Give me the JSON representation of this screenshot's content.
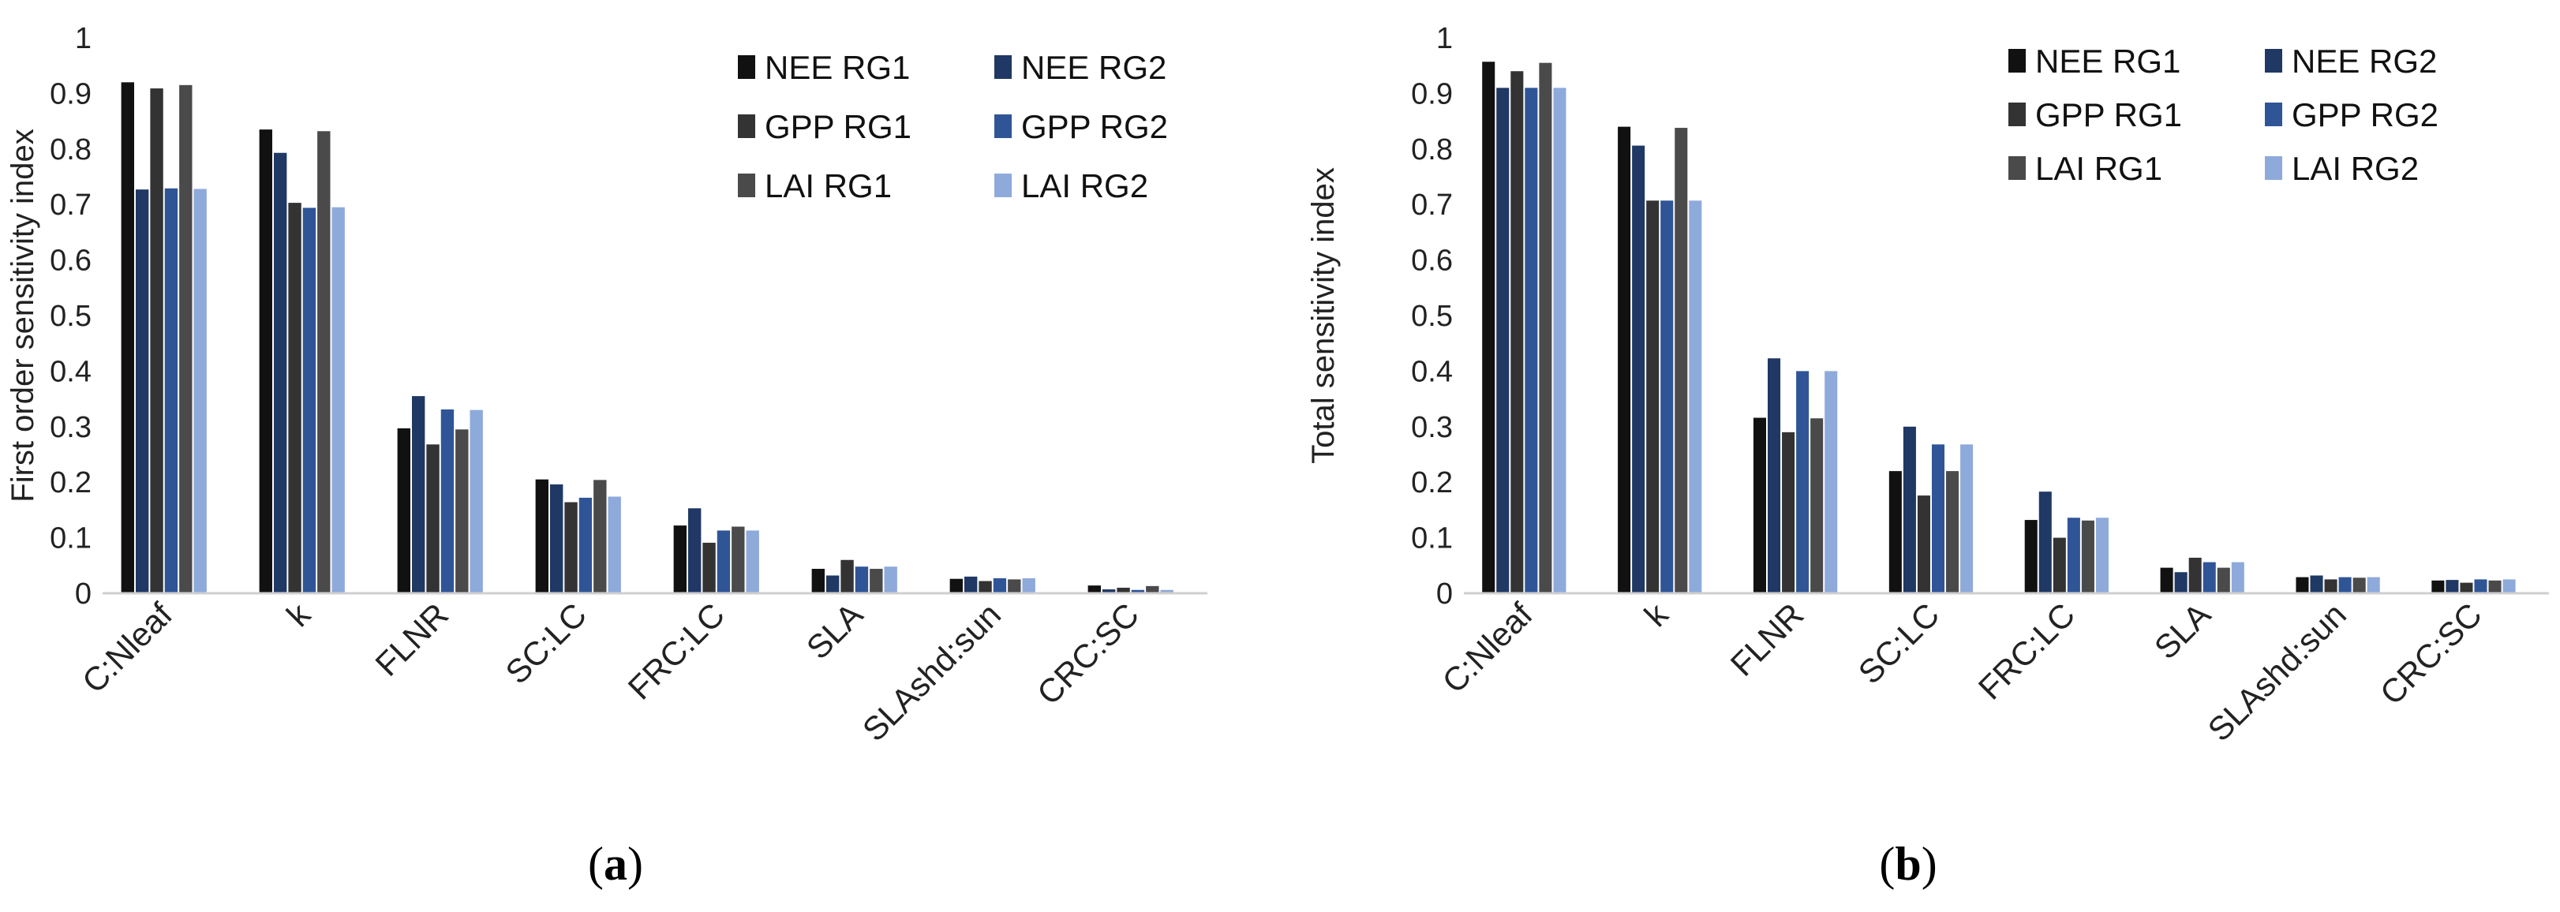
{
  "chart_data": [
    {
      "type": "bar",
      "panel_label": {
        "open": "(",
        "letter": "a",
        "close": ")"
      },
      "ylabel": "First order sensitivity index",
      "xlabel": "",
      "ylim": [
        0,
        1
      ],
      "yticks": [
        "0",
        "0.1",
        "0.2",
        "0.3",
        "0.4",
        "0.5",
        "0.6",
        "0.7",
        "0.8",
        "0.9",
        "1"
      ],
      "categories": [
        "C:Nleaf",
        "k",
        "FLNR",
        "SC:LC",
        "FRC:LC",
        "SLA",
        "SLAshd:sun",
        "CRC:SC"
      ],
      "legend_position": "top-right",
      "series": [
        {
          "name": "NEE RG1",
          "color": "#111111",
          "values": [
            0.92,
            0.835,
            0.297,
            0.205,
            0.122,
            0.044,
            0.026,
            0.014
          ]
        },
        {
          "name": "NEE RG2",
          "color": "#1f3864",
          "values": [
            0.727,
            0.793,
            0.355,
            0.196,
            0.153,
            0.032,
            0.03,
            0.007
          ]
        },
        {
          "name": "GPP RG1",
          "color": "#333333",
          "values": [
            0.909,
            0.703,
            0.268,
            0.164,
            0.091,
            0.06,
            0.022,
            0.01
          ]
        },
        {
          "name": "GPP RG2",
          "color": "#2f5597",
          "values": [
            0.729,
            0.694,
            0.331,
            0.172,
            0.113,
            0.048,
            0.027,
            0.006
          ]
        },
        {
          "name": "LAI RG1",
          "color": "#4a4a4a",
          "values": [
            0.915,
            0.832,
            0.295,
            0.204,
            0.12,
            0.044,
            0.025,
            0.013
          ]
        },
        {
          "name": "LAI RG2",
          "color": "#8eaadb",
          "values": [
            0.728,
            0.695,
            0.33,
            0.174,
            0.113,
            0.048,
            0.027,
            0.006
          ]
        }
      ]
    },
    {
      "type": "bar",
      "panel_label": {
        "open": "(",
        "letter": "b",
        "close": ")"
      },
      "ylabel": "Total sensitivity index",
      "xlabel": "",
      "ylim": [
        0,
        1
      ],
      "yticks": [
        "0",
        "0.1",
        "0.2",
        "0.3",
        "0.4",
        "0.5",
        "0.6",
        "0.7",
        "0.8",
        "0.9",
        "1"
      ],
      "categories": [
        "C:Nleaf",
        "k",
        "FLNR",
        "SC:LC",
        "FRC:LC",
        "SLA",
        "SLAshd:sun",
        "CRC:SC"
      ],
      "legend_position": "top-right",
      "series": [
        {
          "name": "NEE RG1",
          "color": "#111111",
          "values": [
            0.957,
            0.84,
            0.316,
            0.22,
            0.132,
            0.046,
            0.029,
            0.023
          ]
        },
        {
          "name": "NEE RG2",
          "color": "#1f3864",
          "values": [
            0.91,
            0.806,
            0.423,
            0.3,
            0.183,
            0.038,
            0.032,
            0.024
          ]
        },
        {
          "name": "GPP RG1",
          "color": "#333333",
          "values": [
            0.94,
            0.707,
            0.29,
            0.176,
            0.1,
            0.064,
            0.025,
            0.019
          ]
        },
        {
          "name": "GPP RG2",
          "color": "#2f5597",
          "values": [
            0.91,
            0.707,
            0.4,
            0.268,
            0.136,
            0.056,
            0.029,
            0.025
          ]
        },
        {
          "name": "LAI RG1",
          "color": "#4a4a4a",
          "values": [
            0.955,
            0.838,
            0.315,
            0.22,
            0.131,
            0.046,
            0.028,
            0.023
          ]
        },
        {
          "name": "LAI RG2",
          "color": "#8eaadb",
          "values": [
            0.91,
            0.707,
            0.4,
            0.268,
            0.136,
            0.056,
            0.029,
            0.025
          ]
        }
      ]
    }
  ]
}
